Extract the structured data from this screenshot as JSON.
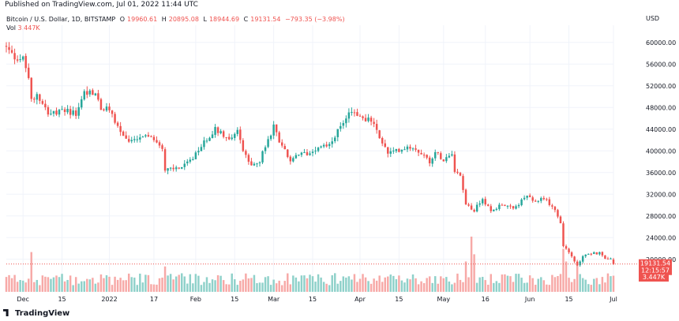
{
  "header": {
    "published": "Published on TradingView.com, Jul 01, 2022 11:44 UTC"
  },
  "legend": {
    "symbol": "Bitcoin / U.S. Dollar, 1D, BITSTAMP",
    "o_label": "O",
    "o_value": "19960.61",
    "h_label": "H",
    "h_value": "20895.08",
    "l_label": "L",
    "l_value": "18944.69",
    "c_label": "C",
    "c_value": "19131.54",
    "change": "−793.35 (−3.98%)",
    "vol_label": "Vol",
    "vol_value": "3.447K"
  },
  "axis": {
    "currency": "USD"
  },
  "price_badge": {
    "price": "19131.54",
    "countdown": "12:15:57",
    "volume": "3.447K"
  },
  "footer": {
    "brand": "TradingView"
  },
  "colors": {
    "up": "#26a69a",
    "down": "#ef5350",
    "up_volume": "#8fd1ca",
    "down_volume": "#f7a9a7",
    "grid": "#f0f3fa",
    "text": "#131722"
  },
  "chart_data": {
    "type": "candlestick",
    "x_start_date": "2021-11-25",
    "x_end_date": "2022-07-01",
    "ylim": [
      14000,
      62000
    ],
    "yticks": [
      20000,
      24000,
      28000,
      32000,
      36000,
      40000,
      44000,
      48000,
      52000,
      56000,
      60000
    ],
    "ytick_labels": [
      "20000.00",
      "24000.00",
      "28000.00",
      "32000.00",
      "36000.00",
      "40000.00",
      "44000.00",
      "48000.00",
      "52000.00",
      "56000.00",
      "60000.00"
    ],
    "xticks": [
      {
        "date": "2021-12-01",
        "label": "Dec"
      },
      {
        "date": "2021-12-15",
        "label": "15"
      },
      {
        "date": "2022-01-01",
        "label": "2022"
      },
      {
        "date": "2022-01-17",
        "label": "17"
      },
      {
        "date": "2022-02-01",
        "label": "Feb"
      },
      {
        "date": "2022-02-15",
        "label": "15"
      },
      {
        "date": "2022-03-01",
        "label": "Mar"
      },
      {
        "date": "2022-03-15",
        "label": "15"
      },
      {
        "date": "2022-04-01",
        "label": "Apr"
      },
      {
        "date": "2022-04-15",
        "label": "15"
      },
      {
        "date": "2022-05-01",
        "label": "May"
      },
      {
        "date": "2022-05-16",
        "label": "16"
      },
      {
        "date": "2022-06-01",
        "label": "Jun"
      },
      {
        "date": "2022-06-15",
        "label": "15"
      },
      {
        "date": "2022-07-01",
        "label": "Jul"
      }
    ],
    "close_keypoints": [
      [
        "2021-11-25",
        59000
      ],
      [
        "2021-11-28",
        57200
      ],
      [
        "2021-12-01",
        57000
      ],
      [
        "2021-12-03",
        53500
      ],
      [
        "2021-12-04",
        49200
      ],
      [
        "2021-12-06",
        50600
      ],
      [
        "2021-12-10",
        47200
      ],
      [
        "2021-12-13",
        46800
      ],
      [
        "2021-12-16",
        47600
      ],
      [
        "2021-12-20",
        46700
      ],
      [
        "2021-12-23",
        50800
      ],
      [
        "2021-12-27",
        50700
      ],
      [
        "2021-12-29",
        47600
      ],
      [
        "2022-01-01",
        47700
      ],
      [
        "2022-01-05",
        43400
      ],
      [
        "2022-01-08",
        41800
      ],
      [
        "2022-01-10",
        41800
      ],
      [
        "2022-01-13",
        42600
      ],
      [
        "2022-01-17",
        42200
      ],
      [
        "2022-01-20",
        40700
      ],
      [
        "2022-01-21",
        36500
      ],
      [
        "2022-01-24",
        36700
      ],
      [
        "2022-01-27",
        37000
      ],
      [
        "2022-01-31",
        38500
      ],
      [
        "2022-02-04",
        41600
      ],
      [
        "2022-02-08",
        44000
      ],
      [
        "2022-02-10",
        43500
      ],
      [
        "2022-02-13",
        42100
      ],
      [
        "2022-02-16",
        43900
      ],
      [
        "2022-02-18",
        40000
      ],
      [
        "2022-02-21",
        37000
      ],
      [
        "2022-02-24",
        38300
      ],
      [
        "2022-02-28",
        43200
      ],
      [
        "2022-03-01",
        44400
      ],
      [
        "2022-03-03",
        42000
      ],
      [
        "2022-03-07",
        38000
      ],
      [
        "2022-03-10",
        39300
      ],
      [
        "2022-03-14",
        39600
      ],
      [
        "2022-03-17",
        40900
      ],
      [
        "2022-03-21",
        41100
      ],
      [
        "2022-03-25",
        44400
      ],
      [
        "2022-03-28",
        47200
      ],
      [
        "2022-03-30",
        47100
      ],
      [
        "2022-04-01",
        46300
      ],
      [
        "2022-04-05",
        45500
      ],
      [
        "2022-04-07",
        43600
      ],
      [
        "2022-04-11",
        39500
      ],
      [
        "2022-04-14",
        40000
      ],
      [
        "2022-04-18",
        40800
      ],
      [
        "2022-04-21",
        40500
      ],
      [
        "2022-04-26",
        38100
      ],
      [
        "2022-04-28",
        39700
      ],
      [
        "2022-05-01",
        38500
      ],
      [
        "2022-05-04",
        39700
      ],
      [
        "2022-05-05",
        36500
      ],
      [
        "2022-05-07",
        35500
      ],
      [
        "2022-05-09",
        30100
      ],
      [
        "2022-05-12",
        29000
      ],
      [
        "2022-05-15",
        31300
      ],
      [
        "2022-05-18",
        28700
      ],
      [
        "2022-05-22",
        30300
      ],
      [
        "2022-05-26",
        29200
      ],
      [
        "2022-05-31",
        31800
      ],
      [
        "2022-06-02",
        30500
      ],
      [
        "2022-06-06",
        31400
      ],
      [
        "2022-06-08",
        30200
      ],
      [
        "2022-06-10",
        29100
      ],
      [
        "2022-06-12",
        26600
      ],
      [
        "2022-06-13",
        22500
      ],
      [
        "2022-06-14",
        22100
      ],
      [
        "2022-06-16",
        20400
      ],
      [
        "2022-06-18",
        19000
      ],
      [
        "2022-06-20",
        20600
      ],
      [
        "2022-06-23",
        21100
      ],
      [
        "2022-06-26",
        21100
      ],
      [
        "2022-06-28",
        20300
      ],
      [
        "2022-06-30",
        19960
      ],
      [
        "2022-07-01",
        19131.54
      ]
    ],
    "volume_spikes": [
      {
        "date": "2021-12-04",
        "relative": 0.72
      },
      {
        "date": "2022-01-21",
        "relative": 0.46
      },
      {
        "date": "2022-05-09",
        "relative": 0.55
      },
      {
        "date": "2022-05-11",
        "relative": 1.0
      },
      {
        "date": "2022-05-12",
        "relative": 0.68
      },
      {
        "date": "2022-06-13",
        "relative": 0.78
      },
      {
        "date": "2022-06-14",
        "relative": 0.55
      },
      {
        "date": "2022-06-18",
        "relative": 0.52
      }
    ],
    "last_price": 19131.54
  }
}
